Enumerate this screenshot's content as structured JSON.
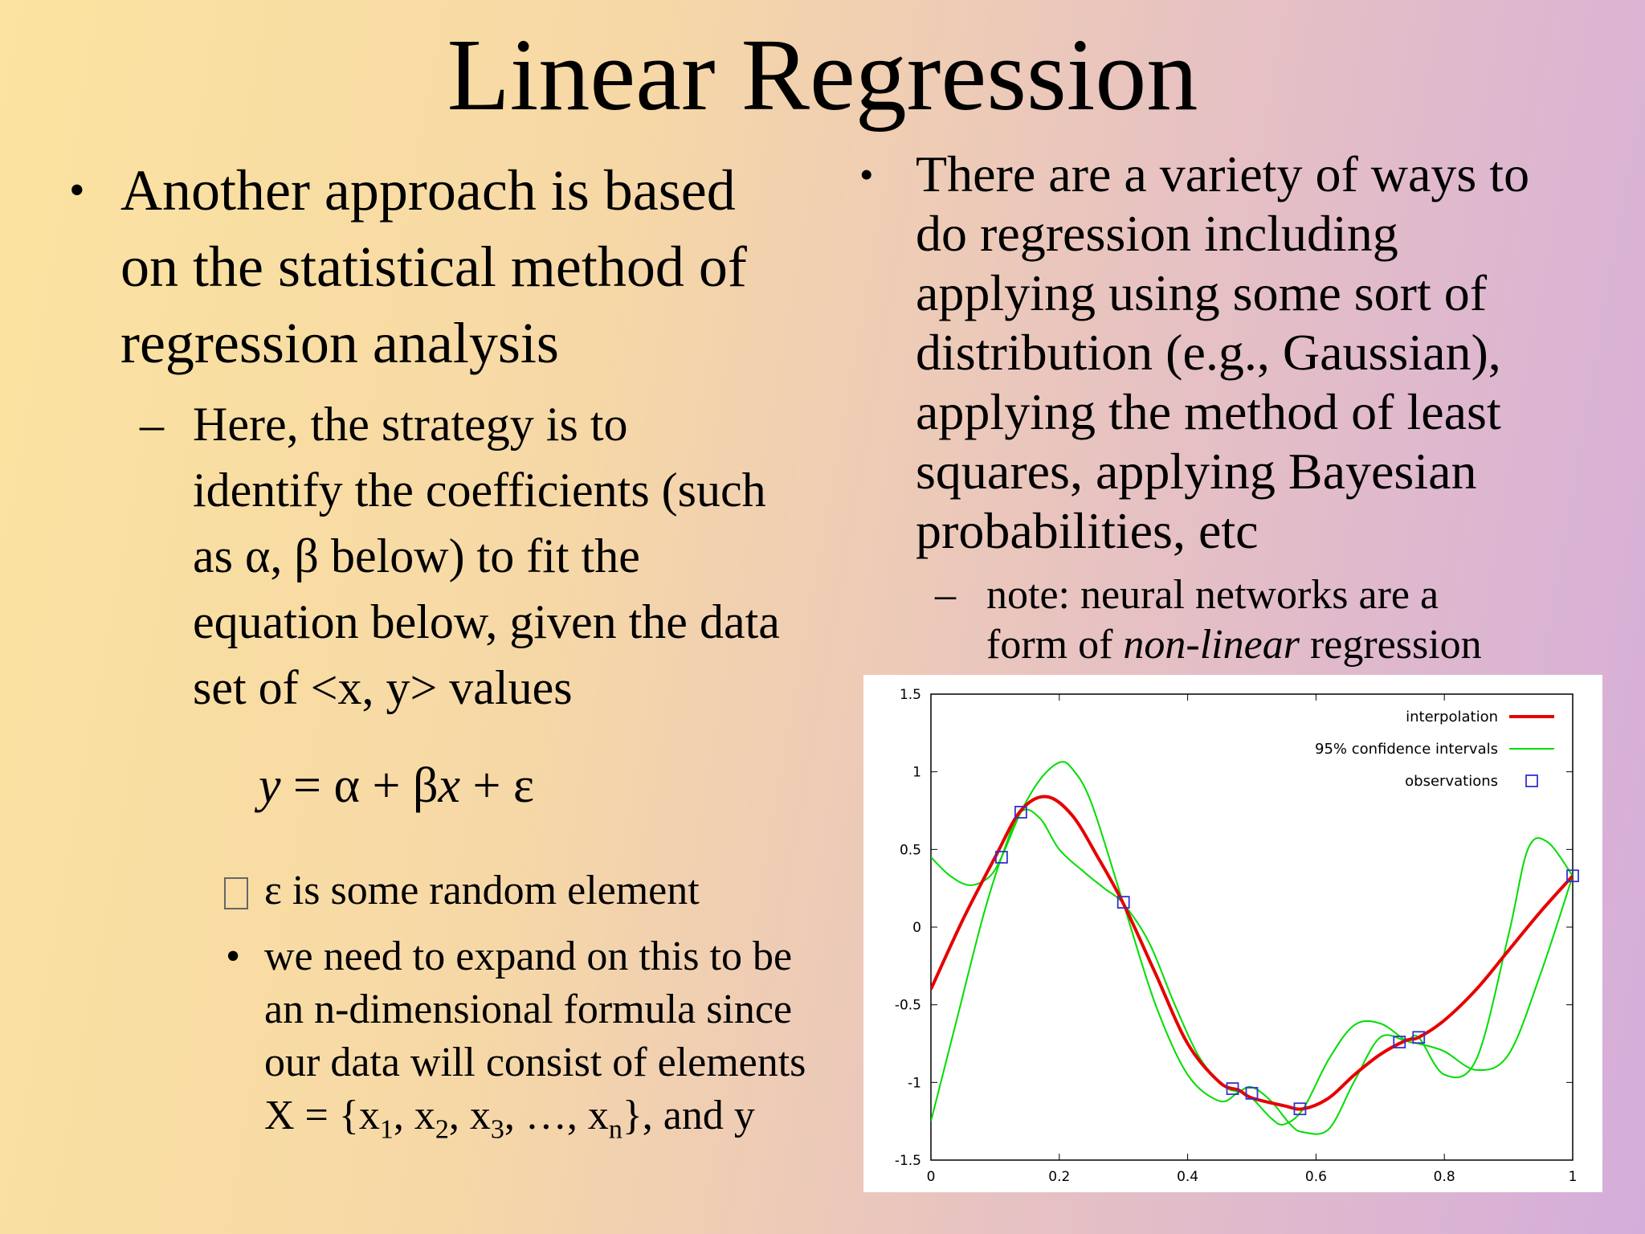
{
  "title": "Linear Regression",
  "left": {
    "bullet1_lines": [
      "Another approach is based",
      "on the statistical method of",
      "regression analysis"
    ],
    "sub_dash": "–",
    "sub_lines": [
      "Here, the strategy is to",
      "identify the coefficients (such",
      "as α, β below) to fit the",
      "equation below, given the data",
      "set of <x, y> values"
    ],
    "equation": {
      "y": "y",
      "middle": " = α + β",
      "x": "x",
      "tail": " + ε"
    },
    "item1": "ε is some random element",
    "item2_lines": [
      "we need to expand on this to be",
      "an n-dimensional formula since",
      "our data will consist of elements"
    ],
    "item2_last": {
      "a": "X = {x",
      "s1": "1",
      "b": ", x",
      "s2": "2",
      "c": ", x",
      "s3": "3",
      "d": ", …, x",
      "sn": "n",
      "e": "}, and y"
    }
  },
  "right": {
    "bullet1_lines": [
      "There are a variety of ways to",
      "do regression including",
      "applying using some sort of",
      "distribution (e.g., Gaussian),",
      "applying the method of least",
      "squares, applying Bayesian",
      "probabilities, etc"
    ],
    "sub_dash": "–",
    "sub_line1": "note:  neural networks are a",
    "sub_line2_a": "form of ",
    "sub_line2_em": "non-linear",
    "sub_line2_b": " regression"
  },
  "chart_data": {
    "type": "line",
    "xlim": [
      0,
      1
    ],
    "ylim": [
      -1.5,
      1.5
    ],
    "x_ticks": [
      "0",
      "0.2",
      "0.4",
      "0.6",
      "0.8",
      "1"
    ],
    "y_ticks": [
      "1.5",
      "1",
      "0.5",
      "0",
      "-0.5",
      "-1",
      "-1.5"
    ],
    "legend_position": "top-right",
    "series": [
      {
        "name": "interpolation",
        "color": "#e60000",
        "x": [
          0,
          0.05,
          0.1,
          0.14,
          0.18,
          0.22,
          0.26,
          0.3,
          0.35,
          0.4,
          0.45,
          0.48,
          0.5,
          0.55,
          0.58,
          0.62,
          0.66,
          0.7,
          0.74,
          0.76,
          0.8,
          0.85,
          0.9,
          0.95,
          1.0
        ],
        "y": [
          -0.4,
          0.05,
          0.45,
          0.75,
          0.84,
          0.72,
          0.45,
          0.15,
          -0.3,
          -0.75,
          -1.0,
          -1.05,
          -1.1,
          -1.15,
          -1.17,
          -1.1,
          -0.95,
          -0.82,
          -0.73,
          -0.71,
          -0.6,
          -0.4,
          -0.15,
          0.1,
          0.33
        ]
      },
      {
        "name": "95% confidence intervals",
        "color": "#00dd00",
        "x": [
          0,
          0.03,
          0.06,
          0.09,
          0.11,
          0.14,
          0.17,
          0.2,
          0.22,
          0.25,
          0.3,
          0.35,
          0.4,
          0.45,
          0.48,
          0.5,
          0.53,
          0.56,
          0.58,
          0.62,
          0.66,
          0.7,
          0.74,
          0.76,
          0.8,
          0.85,
          0.9,
          0.93,
          0.96,
          1.0
        ],
        "y": [
          0.45,
          0.33,
          0.27,
          0.32,
          0.45,
          0.74,
          0.95,
          1.06,
          1.02,
          0.8,
          0.15,
          -0.5,
          -0.95,
          -1.12,
          -1.06,
          -1.03,
          -1.12,
          -1.27,
          -1.32,
          -1.3,
          -0.99,
          -0.71,
          -0.73,
          -0.71,
          -0.95,
          -0.85,
          -0.05,
          0.5,
          0.55,
          0.33
        ]
      },
      {
        "name": "",
        "color": "#00dd00",
        "x": [
          0,
          0.04,
          0.08,
          0.11,
          0.14,
          0.17,
          0.2,
          0.24,
          0.27,
          0.3,
          0.34,
          0.38,
          0.42,
          0.46,
          0.48,
          0.5,
          0.53,
          0.55,
          0.58,
          0.62,
          0.66,
          0.7,
          0.74,
          0.76,
          0.8,
          0.85,
          0.9,
          0.95,
          1.0
        ],
        "y": [
          -1.25,
          -0.6,
          0.05,
          0.45,
          0.74,
          0.7,
          0.5,
          0.35,
          0.25,
          0.15,
          -0.1,
          -0.5,
          -0.85,
          -1.03,
          -1.06,
          -1.1,
          -1.23,
          -1.27,
          -1.17,
          -0.85,
          -0.63,
          -0.62,
          -0.73,
          -0.75,
          -0.8,
          -0.92,
          -0.82,
          -0.3,
          0.33
        ]
      },
      {
        "name": "observations",
        "color": "#3333cc",
        "marker": "square",
        "x": [
          0.11,
          0.14,
          0.3,
          0.47,
          0.5,
          0.575,
          0.73,
          0.76,
          1.0
        ],
        "y": [
          0.45,
          0.74,
          0.16,
          -1.04,
          -1.07,
          -1.17,
          -0.74,
          -0.71,
          0.33
        ]
      }
    ]
  }
}
